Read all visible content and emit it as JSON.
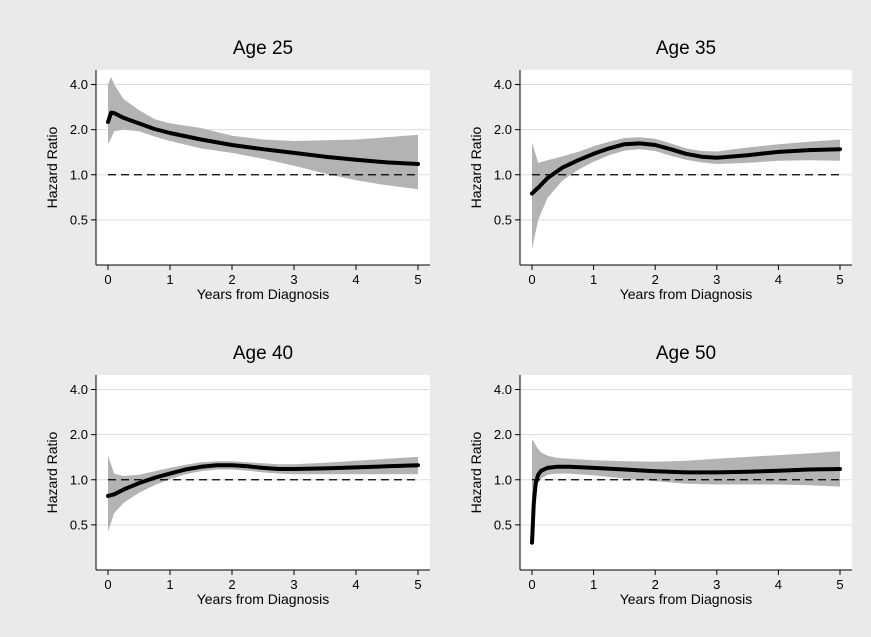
{
  "colors": {
    "background": "#eaeaea",
    "plot_area": "#ffffff",
    "gridline": "#dddddd",
    "confidence_band": "#b3b3b3",
    "estimate_line": "#000000",
    "reference_line": "#000000"
  },
  "chart_data": [
    {
      "type": "line",
      "title": "Age 25",
      "xlabel": "Years from Diagnosis",
      "ylabel": "Hazard Ratio",
      "y_scale": "log",
      "xlim": [
        0,
        5
      ],
      "ylim": [
        0.25,
        5
      ],
      "x_ticks": [
        "0",
        "1",
        "2",
        "3",
        "4",
        "5"
      ],
      "y_ticks": [
        "0.5",
        "1.0",
        "2.0",
        "4.0"
      ],
      "grid": true,
      "reference_line": 1.0,
      "series": [
        {
          "x": [
            0.0,
            0.05,
            0.1,
            0.25,
            0.5,
            0.75,
            1.0,
            1.5,
            2.0,
            2.5,
            3.0,
            3.5,
            4.0,
            4.5,
            5.0
          ],
          "y": [
            2.25,
            2.6,
            2.58,
            2.4,
            2.2,
            2.02,
            1.9,
            1.72,
            1.58,
            1.48,
            1.4,
            1.32,
            1.26,
            1.21,
            1.18
          ],
          "lower": [
            1.6,
            1.75,
            1.95,
            2.0,
            1.95,
            1.8,
            1.68,
            1.5,
            1.4,
            1.28,
            1.15,
            1.02,
            0.92,
            0.85,
            0.8
          ],
          "upper": [
            4.0,
            4.5,
            4.0,
            3.2,
            2.7,
            2.35,
            2.2,
            2.05,
            1.82,
            1.72,
            1.68,
            1.7,
            1.72,
            1.78,
            1.85
          ]
        }
      ]
    },
    {
      "type": "line",
      "title": "Age 35",
      "xlabel": "Years from Diagnosis",
      "ylabel": "Hazard Ratio",
      "y_scale": "log",
      "xlim": [
        0,
        5
      ],
      "ylim": [
        0.25,
        5
      ],
      "x_ticks": [
        "0",
        "1",
        "2",
        "3",
        "4",
        "5"
      ],
      "y_ticks": [
        "0.5",
        "1.0",
        "2.0",
        "4.0"
      ],
      "grid": true,
      "reference_line": 1.0,
      "series": [
        {
          "x": [
            0.0,
            0.1,
            0.25,
            0.5,
            0.75,
            1.0,
            1.25,
            1.5,
            1.75,
            2.0,
            2.25,
            2.5,
            2.75,
            3.0,
            3.5,
            4.0,
            4.5,
            5.0
          ],
          "y": [
            0.75,
            0.82,
            0.95,
            1.12,
            1.25,
            1.38,
            1.5,
            1.6,
            1.62,
            1.58,
            1.48,
            1.38,
            1.32,
            1.3,
            1.35,
            1.42,
            1.46,
            1.48
          ],
          "lower": [
            0.32,
            0.5,
            0.7,
            0.92,
            1.08,
            1.22,
            1.35,
            1.45,
            1.48,
            1.44,
            1.34,
            1.26,
            1.21,
            1.18,
            1.2,
            1.24,
            1.25,
            1.24
          ],
          "upper": [
            1.65,
            1.2,
            1.25,
            1.33,
            1.42,
            1.55,
            1.66,
            1.76,
            1.78,
            1.74,
            1.62,
            1.5,
            1.44,
            1.43,
            1.52,
            1.6,
            1.66,
            1.72
          ]
        }
      ]
    },
    {
      "type": "line",
      "title": "Age 40",
      "xlabel": "Years from Diagnosis",
      "ylabel": "Hazard Ratio",
      "y_scale": "log",
      "xlim": [
        0,
        5
      ],
      "ylim": [
        0.25,
        5
      ],
      "x_ticks": [
        "0",
        "1",
        "2",
        "3",
        "4",
        "5"
      ],
      "y_ticks": [
        "0.5",
        "1.0",
        "2.0",
        "4.0"
      ],
      "grid": true,
      "reference_line": 1.0,
      "series": [
        {
          "x": [
            0.0,
            0.1,
            0.25,
            0.5,
            0.75,
            1.0,
            1.25,
            1.5,
            1.75,
            2.0,
            2.25,
            2.5,
            2.75,
            3.0,
            3.5,
            4.0,
            4.5,
            5.0
          ],
          "y": [
            0.78,
            0.8,
            0.86,
            0.95,
            1.03,
            1.1,
            1.17,
            1.22,
            1.25,
            1.25,
            1.23,
            1.2,
            1.18,
            1.18,
            1.19,
            1.21,
            1.23,
            1.25
          ],
          "lower": [
            0.45,
            0.6,
            0.7,
            0.82,
            0.92,
            1.01,
            1.09,
            1.14,
            1.17,
            1.17,
            1.15,
            1.12,
            1.1,
            1.09,
            1.09,
            1.09,
            1.09,
            1.09
          ],
          "upper": [
            1.45,
            1.1,
            1.06,
            1.08,
            1.14,
            1.2,
            1.26,
            1.31,
            1.33,
            1.33,
            1.31,
            1.29,
            1.27,
            1.27,
            1.3,
            1.34,
            1.38,
            1.42
          ]
        }
      ]
    },
    {
      "type": "line",
      "title": "Age 50",
      "xlabel": "Years from Diagnosis",
      "ylabel": "Hazard Ratio",
      "y_scale": "log",
      "xlim": [
        0,
        5
      ],
      "ylim": [
        0.25,
        5
      ],
      "x_ticks": [
        "0",
        "1",
        "2",
        "3",
        "4",
        "5"
      ],
      "y_ticks": [
        "0.5",
        "1.0",
        "2.0",
        "4.0"
      ],
      "grid": true,
      "reference_line": 1.0,
      "series": [
        {
          "x": [
            0.0,
            0.03,
            0.06,
            0.1,
            0.15,
            0.25,
            0.4,
            0.6,
            1.0,
            1.5,
            2.0,
            2.5,
            3.0,
            3.5,
            4.0,
            4.5,
            5.0
          ],
          "y": [
            0.38,
            0.7,
            0.95,
            1.08,
            1.15,
            1.2,
            1.22,
            1.22,
            1.2,
            1.17,
            1.14,
            1.12,
            1.12,
            1.13,
            1.15,
            1.17,
            1.18
          ],
          "lower": [
            0.38,
            0.55,
            0.8,
            0.95,
            1.02,
            1.08,
            1.1,
            1.1,
            1.07,
            1.02,
            0.98,
            0.94,
            0.93,
            0.93,
            0.93,
            0.92,
            0.9
          ],
          "upper": [
            1.85,
            1.8,
            1.7,
            1.6,
            1.52,
            1.45,
            1.4,
            1.38,
            1.35,
            1.33,
            1.32,
            1.34,
            1.38,
            1.42,
            1.46,
            1.5,
            1.55
          ]
        }
      ]
    }
  ]
}
